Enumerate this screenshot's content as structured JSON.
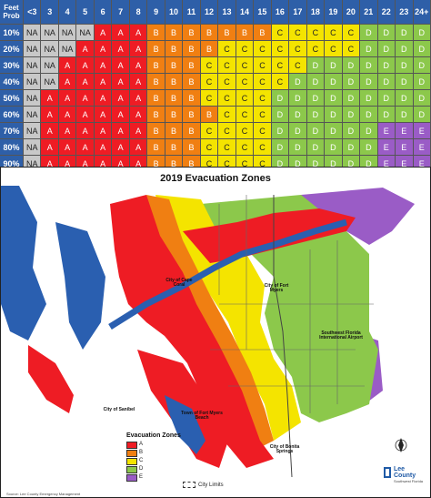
{
  "table": {
    "corner_line1": "Feet",
    "corner_line2": "Prob",
    "columns": [
      "<3",
      "3",
      "4",
      "5",
      "6",
      "7",
      "8",
      "9",
      "10",
      "11",
      "12",
      "13",
      "14",
      "15",
      "16",
      "17",
      "18",
      "19",
      "20",
      "21",
      "22",
      "23",
      "24+"
    ],
    "rows": [
      {
        "prob": "10%",
        "cells": [
          "NA",
          "NA",
          "NA",
          "NA",
          "A",
          "A",
          "A",
          "B",
          "B",
          "B",
          "B",
          "B",
          "B",
          "B",
          "C",
          "C",
          "C",
          "C",
          "C",
          "D",
          "D",
          "D",
          "D"
        ]
      },
      {
        "prob": "20%",
        "cells": [
          "NA",
          "NA",
          "NA",
          "A",
          "A",
          "A",
          "A",
          "B",
          "B",
          "B",
          "B",
          "C",
          "C",
          "C",
          "C",
          "C",
          "C",
          "C",
          "C",
          "D",
          "D",
          "D",
          "D"
        ]
      },
      {
        "prob": "30%",
        "cells": [
          "NA",
          "NA",
          "A",
          "A",
          "A",
          "A",
          "A",
          "B",
          "B",
          "B",
          "C",
          "C",
          "C",
          "C",
          "C",
          "C",
          "D",
          "D",
          "D",
          "D",
          "D",
          "D",
          "D"
        ]
      },
      {
        "prob": "40%",
        "cells": [
          "NA",
          "NA",
          "A",
          "A",
          "A",
          "A",
          "A",
          "B",
          "B",
          "B",
          "C",
          "C",
          "C",
          "C",
          "C",
          "D",
          "D",
          "D",
          "D",
          "D",
          "D",
          "D",
          "D"
        ]
      },
      {
        "prob": "50%",
        "cells": [
          "NA",
          "A",
          "A",
          "A",
          "A",
          "A",
          "A",
          "B",
          "B",
          "B",
          "C",
          "C",
          "C",
          "C",
          "D",
          "D",
          "D",
          "D",
          "D",
          "D",
          "D",
          "D",
          "D"
        ]
      },
      {
        "prob": "60%",
        "cells": [
          "NA",
          "A",
          "A",
          "A",
          "A",
          "A",
          "A",
          "B",
          "B",
          "B",
          "B",
          "C",
          "C",
          "C",
          "D",
          "D",
          "D",
          "D",
          "D",
          "D",
          "D",
          "D",
          "D"
        ]
      },
      {
        "prob": "70%",
        "cells": [
          "NA",
          "A",
          "A",
          "A",
          "A",
          "A",
          "A",
          "B",
          "B",
          "B",
          "C",
          "C",
          "C",
          "C",
          "D",
          "D",
          "D",
          "D",
          "D",
          "D",
          "E",
          "E",
          "E"
        ]
      },
      {
        "prob": "80%",
        "cells": [
          "NA",
          "A",
          "A",
          "A",
          "A",
          "A",
          "A",
          "B",
          "B",
          "B",
          "C",
          "C",
          "C",
          "C",
          "D",
          "D",
          "D",
          "D",
          "D",
          "D",
          "E",
          "E",
          "E"
        ]
      },
      {
        "prob": "90%",
        "cells": [
          "NA",
          "A",
          "A",
          "A",
          "A",
          "A",
          "A",
          "B",
          "B",
          "B",
          "C",
          "C",
          "C",
          "C",
          "D",
          "D",
          "D",
          "D",
          "D",
          "D",
          "E",
          "E",
          "E"
        ]
      }
    ]
  },
  "colors": {
    "header": "#2e5fa8",
    "NA": "#c8c8c8",
    "A": "#ee1c24",
    "B": "#f07f12",
    "C": "#f4e400",
    "D": "#8cc84b",
    "E": "#9a5cc6",
    "water": "#2a5fb0",
    "land": "#ffffff"
  },
  "map": {
    "title": "2019 Evacuation Zones",
    "legend_title": "Evacuation Zones",
    "legend": [
      {
        "label": "A",
        "color": "#ee1c24"
      },
      {
        "label": "B",
        "color": "#f07f12"
      },
      {
        "label": "C",
        "color": "#f4e400"
      },
      {
        "label": "D",
        "color": "#8cc84b"
      },
      {
        "label": "E",
        "color": "#9a5cc6"
      }
    ],
    "city_limits": "City Limits",
    "source": "Source: Lee County Emergency Management",
    "logo_line1": "Lee County",
    "logo_line2": "Southwest Florida",
    "places": {
      "cape_coral": "City of Cape Coral",
      "fort_myers": "City of Fort Myers",
      "sanibel": "City of Sanibel",
      "fort_myers_beach": "Town of Fort Myers Beach",
      "bonita": "City of Bonita Springs",
      "airport": "Southwest Florida International Airport"
    }
  }
}
